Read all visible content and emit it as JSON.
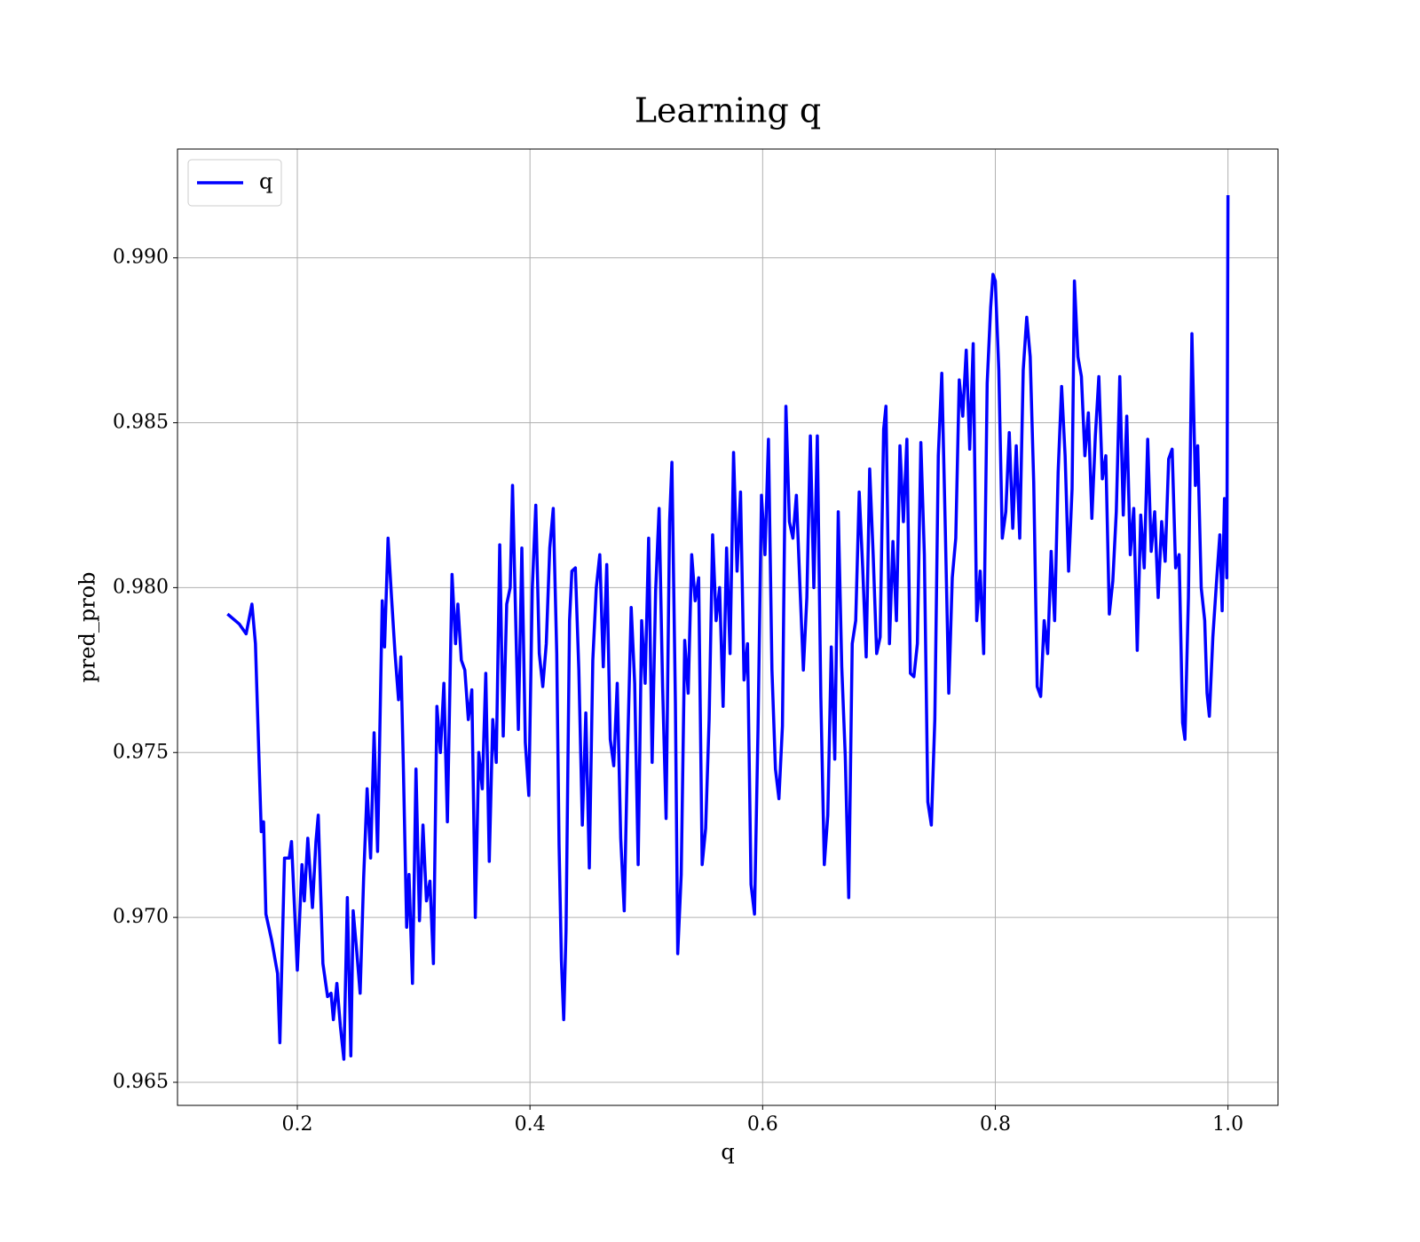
{
  "chart_data": {
    "type": "line",
    "title": "Learning q",
    "xlabel": "q",
    "ylabel": "pred_prob",
    "x": [
      0.14,
      0.15,
      0.156,
      0.161,
      0.164,
      0.169,
      0.171,
      0.173,
      0.178,
      0.183,
      0.185,
      0.189,
      0.193,
      0.195,
      0.2,
      0.204,
      0.206,
      0.209,
      0.213,
      0.216,
      0.218,
      0.222,
      0.226,
      0.229,
      0.231,
      0.234,
      0.237,
      0.24,
      0.243,
      0.246,
      0.248,
      0.251,
      0.254,
      0.257,
      0.26,
      0.263,
      0.266,
      0.269,
      0.273,
      0.275,
      0.278,
      0.281,
      0.284,
      0.287,
      0.289,
      0.291,
      0.294,
      0.296,
      0.299,
      0.302,
      0.305,
      0.308,
      0.311,
      0.314,
      0.317,
      0.32,
      0.323,
      0.326,
      0.329,
      0.333,
      0.336,
      0.338,
      0.341,
      0.344,
      0.347,
      0.35,
      0.353,
      0.356,
      0.359,
      0.362,
      0.365,
      0.368,
      0.371,
      0.374,
      0.377,
      0.38,
      0.383,
      0.385,
      0.388,
      0.39,
      0.393,
      0.396,
      0.399,
      0.402,
      0.405,
      0.408,
      0.411,
      0.414,
      0.417,
      0.42,
      0.423,
      0.425,
      0.427,
      0.429,
      0.431,
      0.434,
      0.436,
      0.439,
      0.442,
      0.445,
      0.448,
      0.451,
      0.454,
      0.457,
      0.46,
      0.463,
      0.466,
      0.469,
      0.472,
      0.475,
      0.478,
      0.481,
      0.484,
      0.487,
      0.49,
      0.493,
      0.496,
      0.499,
      0.502,
      0.505,
      0.508,
      0.511,
      0.514,
      0.517,
      0.52,
      0.522,
      0.525,
      0.527,
      0.53,
      0.533,
      0.536,
      0.539,
      0.542,
      0.545,
      0.548,
      0.551,
      0.554,
      0.557,
      0.56,
      0.563,
      0.566,
      0.569,
      0.572,
      0.575,
      0.578,
      0.581,
      0.584,
      0.587,
      0.59,
      0.593,
      0.596,
      0.599,
      0.602,
      0.605,
      0.608,
      0.611,
      0.614,
      0.617,
      0.62,
      0.623,
      0.626,
      0.629,
      0.632,
      0.635,
      0.638,
      0.641,
      0.644,
      0.647,
      0.65,
      0.653,
      0.656,
      0.659,
      0.662,
      0.665,
      0.668,
      0.671,
      0.674,
      0.677,
      0.68,
      0.683,
      0.686,
      0.689,
      0.692,
      0.695,
      0.698,
      0.701,
      0.704,
      0.706,
      0.709,
      0.712,
      0.715,
      0.718,
      0.721,
      0.724,
      0.727,
      0.73,
      0.733,
      0.736,
      0.739,
      0.742,
      0.745,
      0.748,
      0.751,
      0.754,
      0.757,
      0.76,
      0.763,
      0.766,
      0.769,
      0.772,
      0.775,
      0.778,
      0.781,
      0.784,
      0.787,
      0.79,
      0.793,
      0.796,
      0.798,
      0.8,
      0.803,
      0.806,
      0.809,
      0.812,
      0.815,
      0.818,
      0.821,
      0.824,
      0.827,
      0.83,
      0.833,
      0.836,
      0.839,
      0.842,
      0.845,
      0.848,
      0.851,
      0.854,
      0.857,
      0.86,
      0.863,
      0.866,
      0.868,
      0.871,
      0.874,
      0.877,
      0.88,
      0.883,
      0.886,
      0.889,
      0.892,
      0.895,
      0.898,
      0.901,
      0.904,
      0.907,
      0.91,
      0.913,
      0.916,
      0.919,
      0.922,
      0.925,
      0.928,
      0.931,
      0.934,
      0.937,
      0.94,
      0.943,
      0.946,
      0.949,
      0.952,
      0.955,
      0.958,
      0.961,
      0.963,
      0.966,
      0.969,
      0.972,
      0.974,
      0.977,
      0.98,
      0.982,
      0.984,
      0.987,
      0.99,
      0.993,
      0.995,
      0.997,
      0.999,
      1.0
    ],
    "series": [
      {
        "name": "q",
        "color": "#0000ff",
        "values": [
          0.9792,
          0.9789,
          0.9786,
          0.9795,
          0.9783,
          0.9726,
          0.9729,
          0.9701,
          0.9693,
          0.9683,
          0.9662,
          0.9718,
          0.9718,
          0.9723,
          0.9684,
          0.9716,
          0.9705,
          0.9724,
          0.9703,
          0.9723,
          0.9731,
          0.9686,
          0.9676,
          0.9677,
          0.9669,
          0.968,
          0.9667,
          0.9657,
          0.9706,
          0.9658,
          0.9702,
          0.969,
          0.9677,
          0.9712,
          0.9739,
          0.9718,
          0.9756,
          0.972,
          0.9796,
          0.9782,
          0.9815,
          0.9797,
          0.978,
          0.9766,
          0.9779,
          0.9748,
          0.9697,
          0.9713,
          0.968,
          0.9745,
          0.9699,
          0.9728,
          0.9705,
          0.9711,
          0.9686,
          0.9764,
          0.975,
          0.9771,
          0.9729,
          0.9804,
          0.9783,
          0.9795,
          0.9778,
          0.9775,
          0.976,
          0.9769,
          0.97,
          0.975,
          0.9739,
          0.9774,
          0.9717,
          0.976,
          0.9747,
          0.9813,
          0.9755,
          0.9795,
          0.98,
          0.9831,
          0.9786,
          0.9757,
          0.9812,
          0.9753,
          0.9737,
          0.98,
          0.9825,
          0.978,
          0.977,
          0.9783,
          0.9812,
          0.9824,
          0.978,
          0.9722,
          0.9687,
          0.9669,
          0.9696,
          0.979,
          0.9805,
          0.9806,
          0.9775,
          0.9728,
          0.9762,
          0.9715,
          0.9778,
          0.98,
          0.981,
          0.9776,
          0.9807,
          0.9754,
          0.9746,
          0.9771,
          0.9724,
          0.9702,
          0.9752,
          0.9794,
          0.9771,
          0.9716,
          0.979,
          0.9771,
          0.9815,
          0.9747,
          0.9799,
          0.9824,
          0.977,
          0.973,
          0.982,
          0.9838,
          0.9765,
          0.9689,
          0.9713,
          0.9784,
          0.9768,
          0.981,
          0.9796,
          0.9803,
          0.9716,
          0.9727,
          0.976,
          0.9816,
          0.979,
          0.98,
          0.9764,
          0.9812,
          0.978,
          0.9841,
          0.9805,
          0.9829,
          0.9772,
          0.9783,
          0.971,
          0.9701,
          0.9757,
          0.9828,
          0.981,
          0.9845,
          0.9775,
          0.9745,
          0.9736,
          0.9758,
          0.9855,
          0.982,
          0.9815,
          0.9828,
          0.9801,
          0.9775,
          0.9797,
          0.9846,
          0.98,
          0.9846,
          0.9767,
          0.9716,
          0.9731,
          0.9782,
          0.9748,
          0.9823,
          0.9776,
          0.9749,
          0.9706,
          0.9783,
          0.979,
          0.9829,
          0.9806,
          0.9779,
          0.9836,
          0.981,
          0.978,
          0.9785,
          0.9848,
          0.9855,
          0.9783,
          0.9814,
          0.979,
          0.9843,
          0.982,
          0.9845,
          0.9774,
          0.9773,
          0.9783,
          0.9844,
          0.981,
          0.9735,
          0.9728,
          0.976,
          0.984,
          0.9865,
          0.9818,
          0.9768,
          0.9803,
          0.9815,
          0.9863,
          0.9852,
          0.9872,
          0.9842,
          0.9874,
          0.979,
          0.9805,
          0.978,
          0.9862,
          0.9885,
          0.9895,
          0.9893,
          0.9866,
          0.9815,
          0.9823,
          0.9847,
          0.9818,
          0.9843,
          0.9815,
          0.9866,
          0.9882,
          0.987,
          0.9832,
          0.977,
          0.9767,
          0.979,
          0.978,
          0.9811,
          0.979,
          0.9835,
          0.9861,
          0.984,
          0.9805,
          0.983,
          0.9893,
          0.987,
          0.9864,
          0.984,
          0.9853,
          0.9821,
          0.9846,
          0.9864,
          0.9833,
          0.984,
          0.9792,
          0.9802,
          0.9823,
          0.9864,
          0.9822,
          0.9852,
          0.981,
          0.9824,
          0.9781,
          0.9822,
          0.9806,
          0.9845,
          0.9811,
          0.9823,
          0.9797,
          0.982,
          0.9808,
          0.9839,
          0.9842,
          0.9806,
          0.981,
          0.9759,
          0.9754,
          0.9797,
          0.9877,
          0.9831,
          0.9843,
          0.98,
          0.979,
          0.9768,
          0.9761,
          0.9785,
          0.9801,
          0.9816,
          0.9793,
          0.9827,
          0.9803,
          0.9919
        ]
      }
    ],
    "xlim": [
      0.097,
      1.043
    ],
    "xticks": [
      0.2,
      0.4,
      0.6,
      0.8,
      {
        "value": 1,
        "label": "1.0"
      }
    ],
    "ylim": [
      0.9643,
      0.9933
    ],
    "yticks": [
      0.965,
      {
        "value": 0.97,
        "label": "0.970"
      },
      0.975,
      {
        "value": 0.98,
        "label": "0.980"
      },
      0.985,
      {
        "value": 0.99,
        "label": "0.990"
      }
    ],
    "grid": true,
    "legend": "upper-left"
  }
}
